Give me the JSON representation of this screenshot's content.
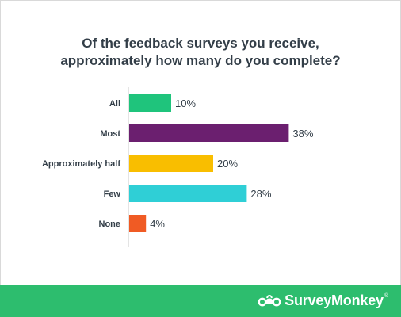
{
  "title_line1": "Of the feedback surveys you receive,",
  "title_line2": "approximately how many do you complete?",
  "chart_data": {
    "type": "bar",
    "orientation": "horizontal",
    "title": "Of the feedback surveys you receive, approximately how many do you complete?",
    "categories": [
      "All",
      "Most",
      "Approximately half",
      "Few",
      "None"
    ],
    "values": [
      10,
      38,
      20,
      28,
      4
    ],
    "value_labels": [
      "10%",
      "38%",
      "20%",
      "28%",
      "4%"
    ],
    "colors": [
      "#1fc47c",
      "#6b1f6f",
      "#f9be00",
      "#2fcfd6",
      "#f05b24"
    ],
    "xlim": [
      0,
      40
    ],
    "grid": false,
    "legend": "none"
  },
  "footer": {
    "brand": "SurveyMonkey",
    "brand_mark": "®",
    "background": "#2dbd6e",
    "icon": "surveymonkey-logo-icon"
  }
}
